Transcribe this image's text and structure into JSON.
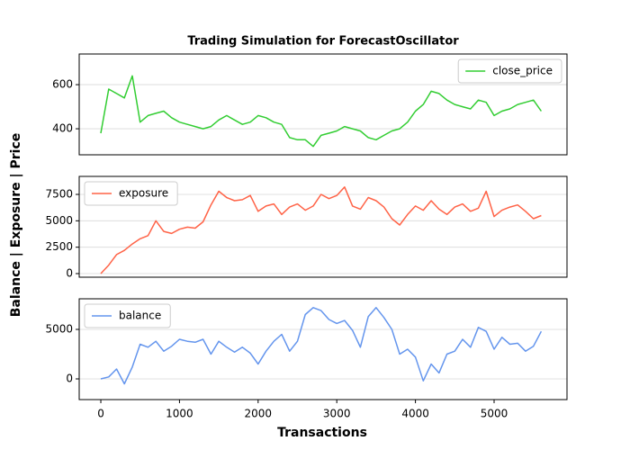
{
  "title": "Trading Simulation for ForecastOscillator",
  "ylabel": "Balance | Exposure | Price",
  "xlabel": "Transactions",
  "chart_data": [
    {
      "type": "line",
      "legend": "upper right",
      "grid": true,
      "x": [
        0,
        100,
        200,
        300,
        400,
        500,
        600,
        700,
        800,
        900,
        1000,
        1100,
        1200,
        1300,
        1400,
        1500,
        1600,
        1700,
        1800,
        1900,
        2000,
        2100,
        2200,
        2300,
        2400,
        2500,
        2600,
        2700,
        2800,
        2900,
        3000,
        3100,
        3200,
        3300,
        3400,
        3500,
        3600,
        3700,
        3800,
        3900,
        4000,
        4100,
        4200,
        4300,
        4400,
        4500,
        4600,
        4700,
        4800,
        4900,
        5000,
        5100,
        5200,
        5300,
        5400,
        5500,
        5600
      ],
      "series": [
        {
          "name": "close_price",
          "color": "#32cd32",
          "values": [
            380,
            580,
            560,
            540,
            640,
            430,
            460,
            470,
            480,
            450,
            430,
            420,
            410,
            400,
            410,
            440,
            460,
            440,
            420,
            430,
            460,
            450,
            430,
            420,
            360,
            350,
            350,
            320,
            370,
            380,
            390,
            410,
            400,
            390,
            360,
            350,
            370,
            390,
            400,
            430,
            480,
            510,
            570,
            560,
            530,
            510,
            500,
            490,
            530,
            520,
            460,
            480,
            490,
            510,
            520,
            530,
            480
          ]
        }
      ],
      "xlim": [
        -275,
        5927
      ],
      "ylim": [
        282,
        739
      ],
      "yticks": [
        400,
        600
      ]
    },
    {
      "type": "line",
      "legend": "upper left",
      "grid": true,
      "x": [
        0,
        100,
        200,
        300,
        400,
        500,
        600,
        700,
        800,
        900,
        1000,
        1100,
        1200,
        1300,
        1400,
        1500,
        1600,
        1700,
        1800,
        1900,
        2000,
        2100,
        2200,
        2300,
        2400,
        2500,
        2600,
        2700,
        2800,
        2900,
        3000,
        3100,
        3200,
        3300,
        3400,
        3500,
        3600,
        3700,
        3800,
        3900,
        4000,
        4100,
        4200,
        4300,
        4400,
        4500,
        4600,
        4700,
        4800,
        4900,
        5000,
        5100,
        5200,
        5300,
        5400,
        5500,
        5600
      ],
      "series": [
        {
          "name": "exposure",
          "color": "#ff6347",
          "values": [
            0,
            800,
            1800,
            2200,
            2800,
            3300,
            3600,
            5000,
            4000,
            3800,
            4200,
            4400,
            4300,
            4900,
            6500,
            7800,
            7200,
            6900,
            7000,
            7400,
            5900,
            6400,
            6600,
            5600,
            6300,
            6600,
            6000,
            6400,
            7500,
            7100,
            7400,
            8200,
            6400,
            6100,
            7200,
            6900,
            6300,
            5200,
            4600,
            5600,
            6400,
            6000,
            6900,
            6100,
            5600,
            6300,
            6600,
            5900,
            6200,
            7800,
            5400,
            6000,
            6300,
            6500,
            5900,
            5200,
            5500
          ]
        }
      ],
      "xlim": [
        -275,
        5927
      ],
      "ylim": [
        -341,
        9205
      ],
      "yticks": [
        0,
        2500,
        5000,
        7500
      ]
    },
    {
      "type": "line",
      "legend": "upper left",
      "grid": true,
      "x": [
        0,
        100,
        200,
        300,
        400,
        500,
        600,
        700,
        800,
        900,
        1000,
        1100,
        1200,
        1300,
        1400,
        1500,
        1600,
        1700,
        1800,
        1900,
        2000,
        2100,
        2200,
        2300,
        2400,
        2500,
        2600,
        2700,
        2800,
        2900,
        3000,
        3100,
        3200,
        3300,
        3400,
        3500,
        3600,
        3700,
        3800,
        3900,
        4000,
        4100,
        4200,
        4300,
        4400,
        4500,
        4600,
        4700,
        4800,
        4900,
        5000,
        5100,
        5200,
        5300,
        5400,
        5500,
        5600
      ],
      "series": [
        {
          "name": "balance",
          "color": "#6495ed",
          "values": [
            0,
            200,
            1000,
            -500,
            1200,
            3500,
            3200,
            3800,
            2800,
            3300,
            4000,
            3800,
            3700,
            4000,
            2500,
            3800,
            3200,
            2700,
            3200,
            2600,
            1500,
            2800,
            3800,
            4500,
            2800,
            3800,
            6500,
            7200,
            6900,
            6000,
            5600,
            5900,
            4900,
            3200,
            6300,
            7200,
            6200,
            5000,
            2500,
            3000,
            2200,
            -200,
            1500,
            600,
            2500,
            2800,
            4000,
            3200,
            5200,
            4800,
            3000,
            4200,
            3500,
            3600,
            2800,
            3300,
            4800
          ]
        }
      ],
      "xlim": [
        -275,
        5927
      ],
      "ylim": [
        -2091,
        8091
      ],
      "yticks": [
        0,
        5000
      ],
      "xticks": [
        0,
        1000,
        2000,
        3000,
        4000,
        5000
      ]
    }
  ]
}
